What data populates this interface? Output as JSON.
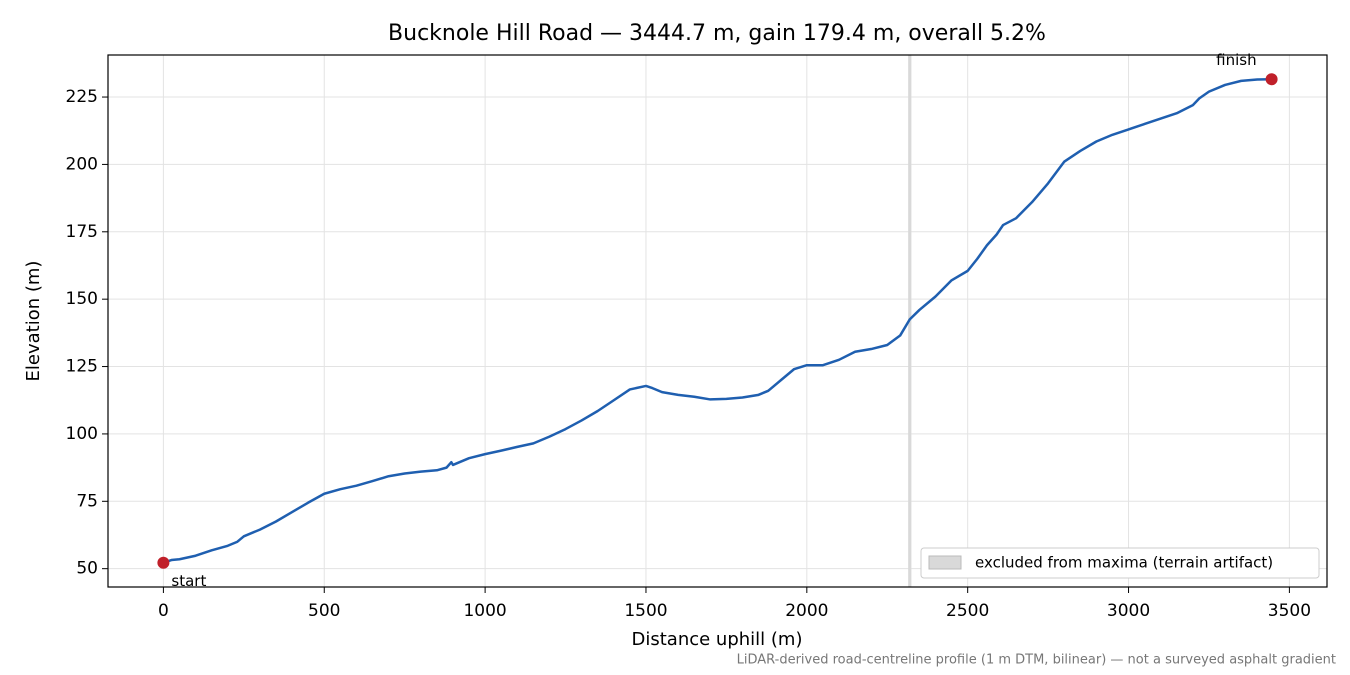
{
  "chart_data": {
    "type": "line",
    "title": "Bucknole Hill Road — 3444.7 m, gain 179.4 m, overall 5.2%",
    "xlabel": "Distance uphill (m)",
    "ylabel": "Elevation (m)",
    "note": "LiDAR-derived road-centreline profile (1 m DTM, bilinear) — not a surveyed asphalt gradient",
    "xlim": [
      -172.2,
      3616.9
    ],
    "ylim": [
      43.2,
      240.6
    ],
    "xticks": [
      0,
      500,
      1000,
      1500,
      2000,
      2500,
      3000,
      3500
    ],
    "yticks": [
      50,
      75,
      100,
      125,
      150,
      175,
      200,
      225
    ],
    "grid": true,
    "legend": "lower right",
    "color": "#1f5fb0",
    "x": [
      0,
      25,
      50,
      100,
      150,
      200,
      230,
      250,
      300,
      350,
      400,
      450,
      500,
      550,
      600,
      650,
      700,
      750,
      800,
      850,
      880,
      895,
      900,
      950,
      1000,
      1050,
      1100,
      1150,
      1200,
      1250,
      1300,
      1350,
      1400,
      1450,
      1500,
      1520,
      1550,
      1600,
      1650,
      1700,
      1750,
      1800,
      1850,
      1880,
      1920,
      1960,
      2000,
      2050,
      2100,
      2150,
      2200,
      2250,
      2290,
      2320,
      2350,
      2400,
      2450,
      2500,
      2530,
      2560,
      2590,
      2610,
      2650,
      2700,
      2750,
      2800,
      2850,
      2900,
      2950,
      3000,
      3050,
      3100,
      3150,
      3200,
      3220,
      3250,
      3300,
      3350,
      3400,
      3444.7
    ],
    "values": [
      52.2,
      53.2,
      53.5,
      54.8,
      56.8,
      58.5,
      60,
      62,
      64.5,
      67.5,
      71,
      74.5,
      77.8,
      79.5,
      80.8,
      82.5,
      84.3,
      85.3,
      86,
      86.5,
      87.5,
      89.5,
      88.5,
      91,
      92.5,
      93.8,
      95.2,
      96.5,
      99,
      101.8,
      105,
      108.5,
      112.5,
      116.5,
      117.8,
      117,
      115.5,
      114.5,
      113.8,
      112.8,
      113,
      113.5,
      114.5,
      116,
      120,
      124,
      125.5,
      125.5,
      127.5,
      130.5,
      131.5,
      133,
      136.5,
      142.5,
      146,
      151,
      157,
      160.5,
      165,
      170,
      174,
      177.5,
      180,
      186,
      193,
      201,
      205,
      208.5,
      211,
      213,
      215,
      217,
      219,
      222,
      224.5,
      227,
      229.5,
      231,
      231.5,
      231.6
    ],
    "markers": [
      {
        "label": "start",
        "x": 0,
        "y": 52.2,
        "color": "#c0202a"
      },
      {
        "label": "finish",
        "x": 3444.7,
        "y": 231.6,
        "color": "#c0202a"
      }
    ],
    "excluded": {
      "label": "excluded from maxima (terrain artifact)",
      "range": [
        2315,
        2325
      ],
      "color": "#d9d9d9"
    }
  }
}
